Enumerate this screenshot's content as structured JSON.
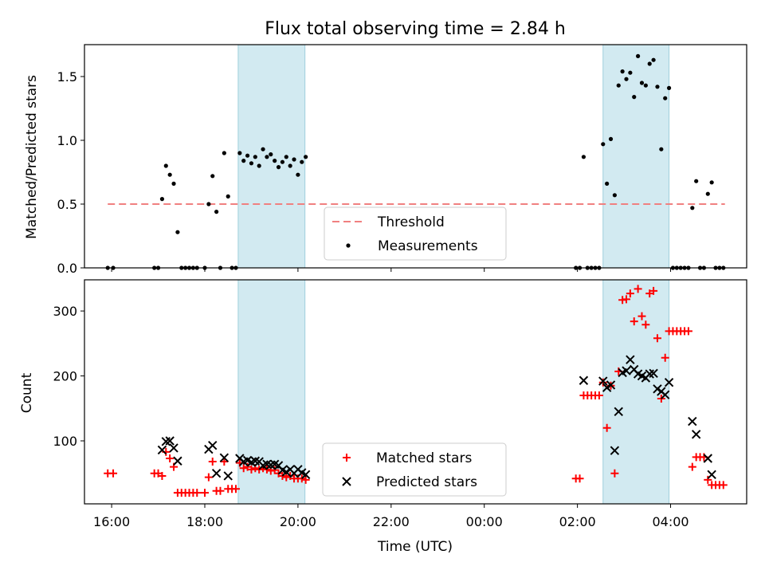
{
  "figure": {
    "title": "Flux total observing time = 2.84 h",
    "xlabel": "Time (UTC)"
  },
  "chart_data": [
    {
      "type": "scatter",
      "ylabel": "Matched/Predicted stars",
      "ylim": [
        0,
        1.75
      ],
      "xlim": [
        "15:25",
        "05:38"
      ],
      "yticks": [
        0.0,
        0.5,
        1.0,
        1.5
      ],
      "ytick_labels": [
        "0.0",
        "0.5",
        "1.0",
        "1.5"
      ],
      "shaded_intervals": [
        [
          "18:43",
          "20:09"
        ],
        [
          "02:33",
          "03:58"
        ]
      ],
      "threshold": {
        "name": "Threshold",
        "value": 0.5,
        "x_range": [
          "15:55",
          "05:10"
        ],
        "color": "#f08080"
      },
      "legend": {
        "placement": "lower-center"
      },
      "series": [
        {
          "name": "Measurements",
          "marker": "dot",
          "color": "#000000",
          "points": [
            [
              "15:55",
              0.0
            ],
            [
              "16:02",
              0.0
            ],
            [
              "16:55",
              0.0
            ],
            [
              "17:00",
              0.0
            ],
            [
              "17:05",
              0.54
            ],
            [
              "17:10",
              0.8
            ],
            [
              "17:15",
              0.73
            ],
            [
              "17:20",
              0.66
            ],
            [
              "17:25",
              0.28
            ],
            [
              "17:30",
              0.0
            ],
            [
              "17:35",
              0.0
            ],
            [
              "17:40",
              0.0
            ],
            [
              "17:45",
              0.0
            ],
            [
              "17:50",
              0.0
            ],
            [
              "18:00",
              0.0
            ],
            [
              "18:05",
              0.5
            ],
            [
              "18:10",
              0.72
            ],
            [
              "18:15",
              0.44
            ],
            [
              "18:20",
              0.0
            ],
            [
              "18:25",
              0.9
            ],
            [
              "18:30",
              0.56
            ],
            [
              "18:35",
              0.0
            ],
            [
              "18:40",
              0.0
            ],
            [
              "18:45",
              0.9
            ],
            [
              "18:50",
              0.84
            ],
            [
              "18:55",
              0.88
            ],
            [
              "19:00",
              0.82
            ],
            [
              "19:05",
              0.87
            ],
            [
              "19:10",
              0.8
            ],
            [
              "19:15",
              0.93
            ],
            [
              "19:20",
              0.87
            ],
            [
              "19:25",
              0.89
            ],
            [
              "19:30",
              0.84
            ],
            [
              "19:35",
              0.79
            ],
            [
              "19:40",
              0.83
            ],
            [
              "19:45",
              0.87
            ],
            [
              "19:50",
              0.8
            ],
            [
              "19:55",
              0.85
            ],
            [
              "20:00",
              0.73
            ],
            [
              "20:05",
              0.83
            ],
            [
              "20:10",
              0.87
            ],
            [
              "01:58",
              0.0
            ],
            [
              "02:03",
              0.0
            ],
            [
              "02:08",
              0.87
            ],
            [
              "02:13",
              0.0
            ],
            [
              "02:18",
              0.0
            ],
            [
              "02:23",
              0.0
            ],
            [
              "02:28",
              0.0
            ],
            [
              "02:33",
              0.97
            ],
            [
              "02:38",
              0.66
            ],
            [
              "02:43",
              1.01
            ],
            [
              "02:48",
              0.57
            ],
            [
              "02:53",
              1.43
            ],
            [
              "02:58",
              1.54
            ],
            [
              "03:03",
              1.48
            ],
            [
              "03:08",
              1.53
            ],
            [
              "03:13",
              1.34
            ],
            [
              "03:18",
              1.66
            ],
            [
              "03:23",
              1.45
            ],
            [
              "03:28",
              1.43
            ],
            [
              "03:33",
              1.6
            ],
            [
              "03:38",
              1.63
            ],
            [
              "03:43",
              1.42
            ],
            [
              "03:48",
              0.93
            ],
            [
              "03:53",
              1.33
            ],
            [
              "03:58",
              1.41
            ],
            [
              "04:03",
              0.0
            ],
            [
              "04:08",
              0.0
            ],
            [
              "04:13",
              0.0
            ],
            [
              "04:18",
              0.0
            ],
            [
              "04:23",
              0.0
            ],
            [
              "04:28",
              0.47
            ],
            [
              "04:33",
              0.68
            ],
            [
              "04:38",
              0.0
            ],
            [
              "04:43",
              0.0
            ],
            [
              "04:48",
              0.58
            ],
            [
              "04:53",
              0.67
            ],
            [
              "04:58",
              0.0
            ],
            [
              "05:03",
              0.0
            ],
            [
              "05:08",
              0.0
            ]
          ]
        }
      ]
    },
    {
      "type": "scatter",
      "ylabel": "Count",
      "ylim": [
        3,
        348
      ],
      "xlim": [
        "15:25",
        "05:38"
      ],
      "yticks": [
        100,
        200,
        300
      ],
      "ytick_labels": [
        "100",
        "200",
        "300"
      ],
      "xticks": [
        "16:00",
        "18:00",
        "20:00",
        "22:00",
        "00:00",
        "02:00",
        "04:00"
      ],
      "shaded_intervals": [
        [
          "18:43",
          "20:09"
        ],
        [
          "02:33",
          "03:58"
        ]
      ],
      "legend": {
        "placement": "lower-center"
      },
      "series": [
        {
          "name": "Matched stars",
          "marker": "plus",
          "color": "#ff0000",
          "points": [
            [
              "15:55",
              50
            ],
            [
              "16:02",
              50
            ],
            [
              "16:55",
              50
            ],
            [
              "17:00",
              50
            ],
            [
              "17:05",
              46
            ],
            [
              "17:10",
              83
            ],
            [
              "17:15",
              73
            ],
            [
              "17:20",
              60
            ],
            [
              "17:25",
              20
            ],
            [
              "17:30",
              20
            ],
            [
              "17:35",
              20
            ],
            [
              "17:40",
              20
            ],
            [
              "17:45",
              20
            ],
            [
              "17:50",
              20
            ],
            [
              "18:00",
              20
            ],
            [
              "18:05",
              44
            ],
            [
              "18:10",
              68
            ],
            [
              "18:15",
              23
            ],
            [
              "18:20",
              23
            ],
            [
              "18:25",
              68
            ],
            [
              "18:30",
              26
            ],
            [
              "18:35",
              26
            ],
            [
              "18:40",
              26
            ],
            [
              "18:45",
              66
            ],
            [
              "18:50",
              58
            ],
            [
              "18:55",
              60
            ],
            [
              "19:00",
              56
            ],
            [
              "19:05",
              58
            ],
            [
              "19:10",
              56
            ],
            [
              "19:15",
              58
            ],
            [
              "19:20",
              56
            ],
            [
              "19:25",
              54
            ],
            [
              "19:30",
              55
            ],
            [
              "19:35",
              50
            ],
            [
              "19:40",
              46
            ],
            [
              "19:45",
              44
            ],
            [
              "19:50",
              46
            ],
            [
              "19:55",
              42
            ],
            [
              "20:00",
              42
            ],
            [
              "20:05",
              42
            ],
            [
              "20:10",
              40
            ],
            [
              "01:58",
              42
            ],
            [
              "02:03",
              42
            ],
            [
              "02:08",
              170
            ],
            [
              "02:13",
              170
            ],
            [
              "02:18",
              170
            ],
            [
              "02:23",
              170
            ],
            [
              "02:28",
              170
            ],
            [
              "02:33",
              190
            ],
            [
              "02:38",
              120
            ],
            [
              "02:43",
              185
            ],
            [
              "02:48",
              50
            ],
            [
              "02:53",
              207
            ],
            [
              "02:58",
              317
            ],
            [
              "03:03",
              318
            ],
            [
              "03:08",
              327
            ],
            [
              "03:13",
              284
            ],
            [
              "03:18",
              334
            ],
            [
              "03:23",
              292
            ],
            [
              "03:28",
              279
            ],
            [
              "03:33",
              327
            ],
            [
              "03:38",
              331
            ],
            [
              "03:43",
              258
            ],
            [
              "03:48",
              165
            ],
            [
              "03:53",
              228
            ],
            [
              "03:58",
              269
            ],
            [
              "04:03",
              269
            ],
            [
              "04:08",
              269
            ],
            [
              "04:13",
              269
            ],
            [
              "04:18",
              269
            ],
            [
              "04:23",
              269
            ],
            [
              "04:28",
              60
            ],
            [
              "04:33",
              75
            ],
            [
              "04:38",
              75
            ],
            [
              "04:43",
              75
            ],
            [
              "04:48",
              40
            ],
            [
              "04:53",
              32
            ],
            [
              "04:58",
              32
            ],
            [
              "05:03",
              32
            ],
            [
              "05:08",
              32
            ]
          ]
        },
        {
          "name": "Predicted stars",
          "marker": "x",
          "color": "#000000",
          "points": [
            [
              "17:05",
              86
            ],
            [
              "17:10",
              99
            ],
            [
              "17:15",
              100
            ],
            [
              "17:20",
              89
            ],
            [
              "17:25",
              69
            ],
            [
              "18:05",
              87
            ],
            [
              "18:10",
              93
            ],
            [
              "18:15",
              50
            ],
            [
              "18:25",
              74
            ],
            [
              "18:30",
              46
            ],
            [
              "18:45",
              73
            ],
            [
              "18:50",
              68
            ],
            [
              "18:55",
              70
            ],
            [
              "19:00",
              67
            ],
            [
              "19:05",
              69
            ],
            [
              "19:10",
              68
            ],
            [
              "19:15",
              62
            ],
            [
              "19:20",
              64
            ],
            [
              "19:25",
              63
            ],
            [
              "19:30",
              64
            ],
            [
              "19:35",
              62
            ],
            [
              "19:40",
              55
            ],
            [
              "19:45",
              52
            ],
            [
              "19:50",
              56
            ],
            [
              "19:55",
              50
            ],
            [
              "20:00",
              56
            ],
            [
              "20:05",
              51
            ],
            [
              "20:10",
              48
            ],
            [
              "02:08",
              193
            ],
            [
              "02:33",
              192
            ],
            [
              "02:38",
              182
            ],
            [
              "02:43",
              186
            ],
            [
              "02:48",
              85
            ],
            [
              "02:53",
              145
            ],
            [
              "02:58",
              205
            ],
            [
              "03:03",
              208
            ],
            [
              "03:08",
              225
            ],
            [
              "03:13",
              210
            ],
            [
              "03:18",
              203
            ],
            [
              "03:23",
              200
            ],
            [
              "03:28",
              197
            ],
            [
              "03:33",
              203
            ],
            [
              "03:38",
              204
            ],
            [
              "03:43",
              180
            ],
            [
              "03:48",
              176
            ],
            [
              "03:53",
              171
            ],
            [
              "03:58",
              190
            ],
            [
              "04:28",
              130
            ],
            [
              "04:33",
              110
            ],
            [
              "04:48",
              73
            ],
            [
              "04:53",
              48
            ]
          ]
        }
      ]
    }
  ]
}
